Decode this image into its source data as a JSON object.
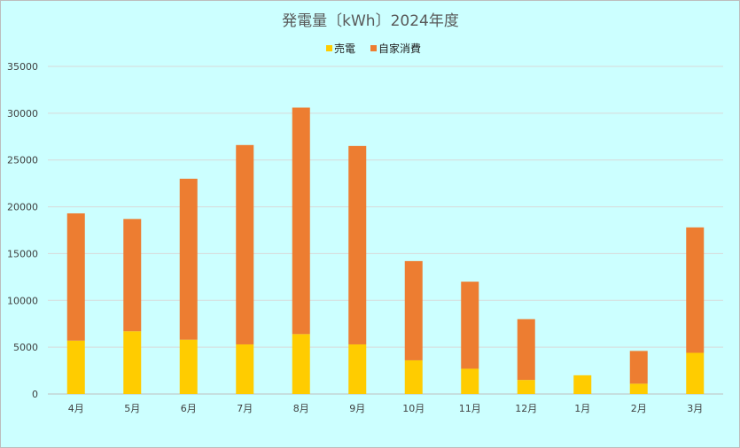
{
  "chart_data": {
    "type": "bar",
    "stacked": true,
    "title": "発電量〔kWh〕2024年度",
    "xlabel": "",
    "ylabel": "",
    "categories": [
      "4月",
      "5月",
      "6月",
      "7月",
      "8月",
      "9月",
      "10月",
      "11月",
      "12月",
      "1月",
      "2月",
      "3月"
    ],
    "series": [
      {
        "name": "売電",
        "color": "#ffcc00",
        "values": [
          5700,
          6700,
          5800,
          5300,
          6400,
          5300,
          3600,
          2700,
          1500,
          2000,
          1100,
          4400
        ]
      },
      {
        "name": "自家消費",
        "color": "#ed7d31",
        "values": [
          13600,
          12000,
          17200,
          21300,
          24200,
          21200,
          10600,
          9300,
          6500,
          0,
          3500,
          13400
        ]
      }
    ],
    "ylim": [
      0,
      35000
    ],
    "yticks": [
      0,
      5000,
      10000,
      15000,
      20000,
      25000,
      30000,
      35000
    ],
    "grid": true,
    "legend_position": "top"
  }
}
